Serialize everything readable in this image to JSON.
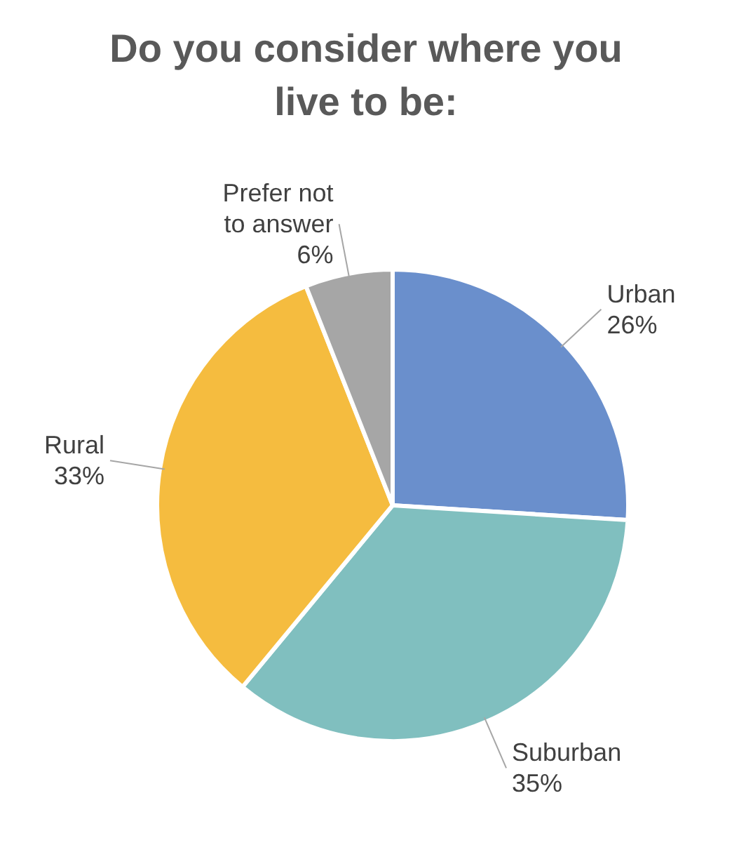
{
  "chart_data": {
    "type": "pie",
    "title": "Do you consider where you live to be:",
    "categories": [
      "Urban",
      "Suburban",
      "Rural",
      "Prefer not to answer"
    ],
    "values": [
      26,
      35,
      33,
      6
    ],
    "colors": [
      "#6a8fcc",
      "#80bfbf",
      "#f5bc3f",
      "#a6a6a6"
    ],
    "value_labels": [
      "26%",
      "35%",
      "33%",
      "6%"
    ]
  }
}
